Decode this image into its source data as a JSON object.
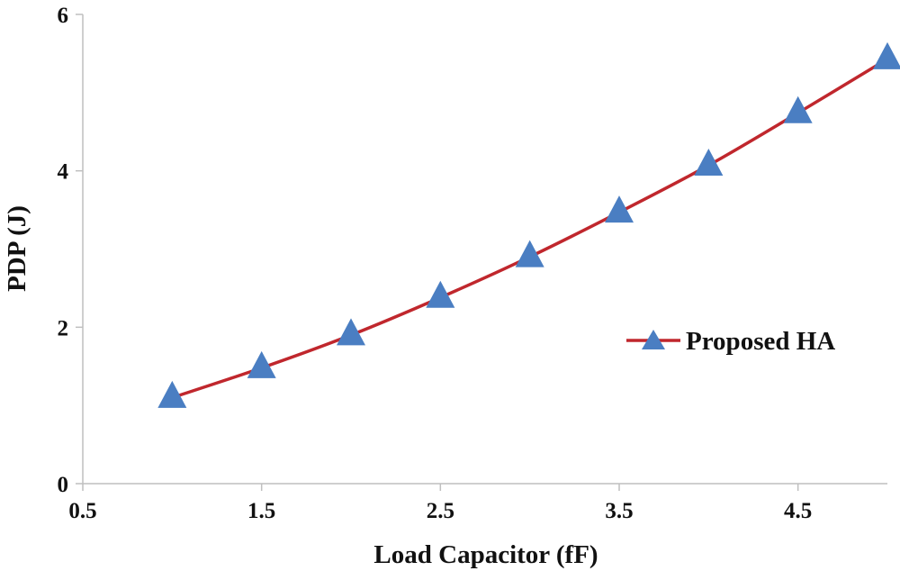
{
  "chart_data": {
    "type": "line",
    "title": "",
    "xlabel": "Load Capacitor (fF)",
    "ylabel": "PDP  (J)",
    "xlim": [
      0.5,
      5
    ],
    "ylim": [
      0,
      6
    ],
    "x_ticks": [
      0.5,
      1.5,
      2.5,
      3.5,
      4.5
    ],
    "x_tick_labels": [
      "0.5",
      "1.5",
      "2.5",
      "3.5",
      "4.5"
    ],
    "y_ticks": [
      0,
      2,
      4,
      6
    ],
    "y_tick_labels": [
      "0",
      "2",
      "4",
      "6"
    ],
    "grid": false,
    "legend_position": "right",
    "series": [
      {
        "name": "Proposed HA",
        "line_color": "#c0272d",
        "marker": "triangle",
        "marker_color": "#4a7ec2",
        "x": [
          1.0,
          1.5,
          2.0,
          2.5,
          3.0,
          3.5,
          4.0,
          4.5,
          5.0
        ],
        "values": [
          1.1,
          1.48,
          1.9,
          2.38,
          2.9,
          3.47,
          4.07,
          4.74,
          5.43
        ]
      }
    ]
  }
}
